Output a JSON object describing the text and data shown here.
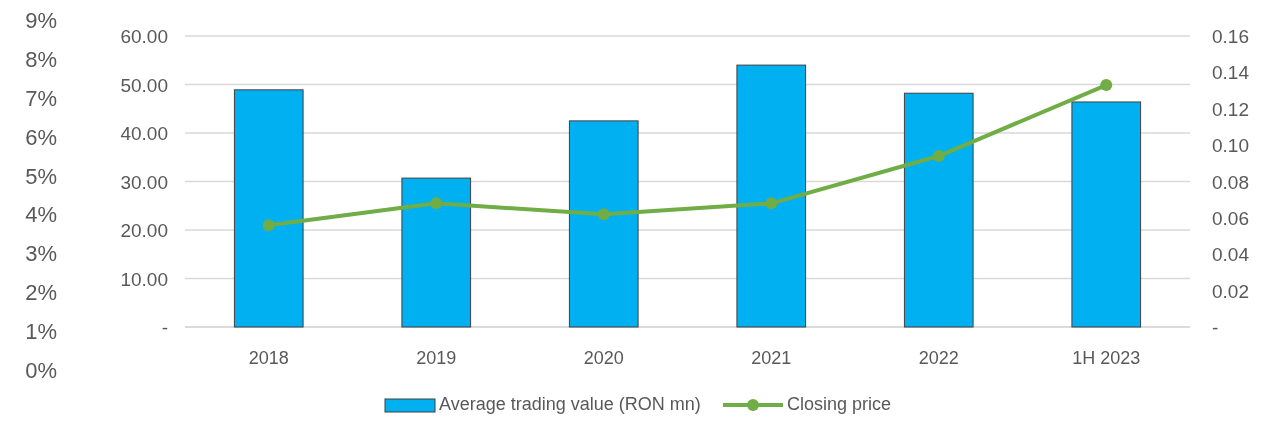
{
  "chart_data": {
    "type": "bar",
    "categories": [
      "2018",
      "2019",
      "2020",
      "2021",
      "2022",
      "1H 2023"
    ],
    "series": [
      {
        "name": "Average trading value (RON mn)",
        "color": "#00b0f0",
        "values": [
          48.9,
          30.7,
          42.5,
          54.0,
          48.2,
          46.4
        ]
      },
      {
        "name": "Closing price",
        "color": "#70ad47",
        "type": "line",
        "axis": "y2",
        "marker": "circle",
        "values": [
          0.056,
          0.068,
          0.062,
          0.068,
          0.094,
          0.133
        ]
      }
    ],
    "ylim": [
      0,
      60
    ],
    "yticks": [
      {
        "value": 0,
        "label": "-"
      },
      {
        "value": 10,
        "label": "10.00"
      },
      {
        "value": 20,
        "label": "20.00"
      },
      {
        "value": 30,
        "label": "30.00"
      },
      {
        "value": 40,
        "label": "40.00"
      },
      {
        "value": 50,
        "label": "50.00"
      },
      {
        "value": 60,
        "label": "60.00"
      }
    ],
    "y2lim": [
      0,
      0.16
    ],
    "y2ticks": [
      {
        "value": 0,
        "label": "-"
      },
      {
        "value": 0.02,
        "label": "0.02"
      },
      {
        "value": 0.04,
        "label": "0.04"
      },
      {
        "value": 0.06,
        "label": "0.06"
      },
      {
        "value": 0.08,
        "label": "0.08"
      },
      {
        "value": 0.1,
        "label": "0.10"
      },
      {
        "value": 0.12,
        "label": "0.12"
      },
      {
        "value": 0.14,
        "label": "0.14"
      },
      {
        "value": 0.16,
        "label": "0.16"
      }
    ],
    "y3lim": [
      0,
      9
    ],
    "y3ticks": [
      {
        "value": 0,
        "label": "0%"
      },
      {
        "value": 1,
        "label": "1%"
      },
      {
        "value": 2,
        "label": "2%"
      },
      {
        "value": 3,
        "label": "3%"
      },
      {
        "value": 4,
        "label": "4%"
      },
      {
        "value": 5,
        "label": "5%"
      },
      {
        "value": 6,
        "label": "6%"
      },
      {
        "value": 7,
        "label": "7%"
      },
      {
        "value": 8,
        "label": "8%"
      },
      {
        "value": 9,
        "label": "9%"
      }
    ],
    "grid": "y",
    "legend": "bottom"
  }
}
